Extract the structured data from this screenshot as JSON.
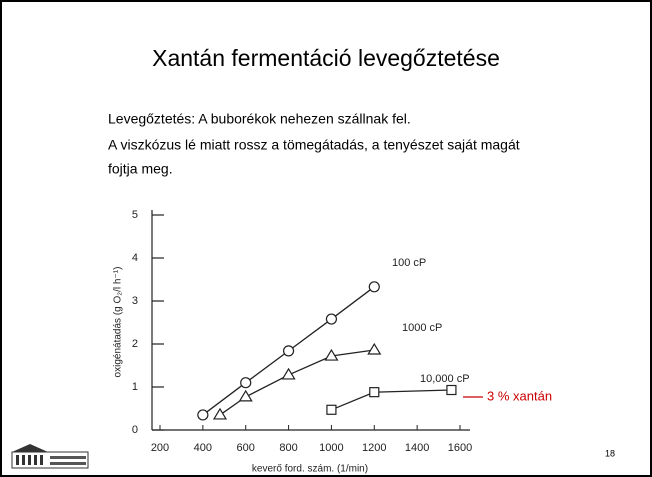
{
  "slide": {
    "title": "Xantán fermentáció levegőztetése",
    "lines": [
      "Levegőztetés: A buborékok nehezen szállnak fel.",
      "A viszkózus lé miatt rossz a tömegátadás, a tenyészet saját magát",
      "fojtja meg."
    ],
    "page_number": "18"
  },
  "chart_data": {
    "type": "line",
    "x_label": "keverő ford. szám. (1/min)",
    "y_label": "oxigénátadás (g O₂/l h⁻¹)",
    "xlim": [
      200,
      1600
    ],
    "xticks": [
      200,
      400,
      600,
      800,
      1000,
      1200,
      1400,
      1600
    ],
    "ylim": [
      0,
      5
    ],
    "yticks": [
      0,
      1,
      2,
      3,
      4,
      5
    ],
    "series": [
      {
        "name": "100 cP",
        "marker": "circle",
        "x": [
          400,
          600,
          800,
          1000,
          1200
        ],
        "values": [
          0.35,
          1.1,
          1.84,
          2.58,
          3.33
        ]
      },
      {
        "name": "1000 cP",
        "marker": "triangle",
        "x": [
          480,
          600,
          800,
          1000,
          1200
        ],
        "values": [
          0.35,
          0.77,
          1.28,
          1.72,
          1.86
        ]
      },
      {
        "name": "10,000 cP",
        "marker": "square",
        "x": [
          1000,
          1200,
          1560
        ],
        "values": [
          0.47,
          0.88,
          0.93
        ]
      }
    ],
    "annotation": {
      "text": "3 % xantán",
      "color": "#cc0000"
    },
    "color": "#222222"
  }
}
